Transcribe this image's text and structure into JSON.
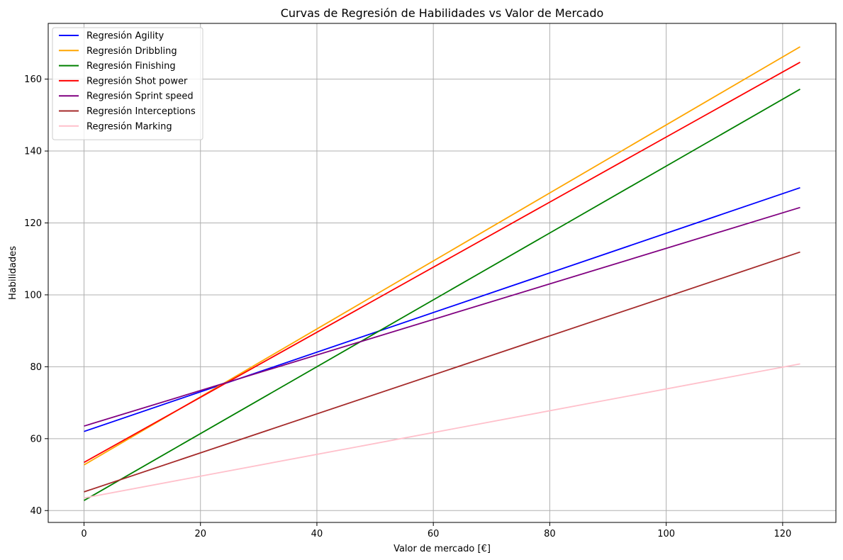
{
  "chart_data": {
    "type": "line",
    "title": "Curvas de Regresión de Habilidades vs Valor de Mercado",
    "xlabel": "Valor de mercado [€]",
    "ylabel": "Habilidades",
    "xlim": [
      -6.15,
      129.15
    ],
    "ylim": [
      36.7,
      175.5
    ],
    "xticks": [
      0,
      20,
      40,
      60,
      80,
      100,
      120
    ],
    "yticks": [
      40,
      60,
      80,
      100,
      120,
      140,
      160
    ],
    "grid": true,
    "legend_position": "upper-left",
    "series": [
      {
        "name": "Regresión Agility",
        "color": "#0000ff",
        "x": [
          0,
          123
        ],
        "y": [
          62.0,
          129.8
        ]
      },
      {
        "name": "Regresión Dribbling",
        "color": "#ffa500",
        "x": [
          0,
          123
        ],
        "y": [
          52.7,
          169.0
        ]
      },
      {
        "name": "Regresión Finishing",
        "color": "#008000",
        "x": [
          0,
          123
        ],
        "y": [
          42.8,
          157.2
        ]
      },
      {
        "name": "Regresión Shot power",
        "color": "#ff0000",
        "x": [
          0,
          123
        ],
        "y": [
          53.4,
          164.7
        ]
      },
      {
        "name": "Regresión Sprint speed",
        "color": "#800080",
        "x": [
          0,
          123
        ],
        "y": [
          63.5,
          124.3
        ]
      },
      {
        "name": "Regresión Interceptions",
        "color": "#a52a2a",
        "x": [
          0,
          123
        ],
        "y": [
          45.2,
          111.9
        ]
      },
      {
        "name": "Regresión Marking",
        "color": "#ffc0cb",
        "x": [
          0,
          123
        ],
        "y": [
          43.5,
          80.8
        ]
      }
    ]
  }
}
